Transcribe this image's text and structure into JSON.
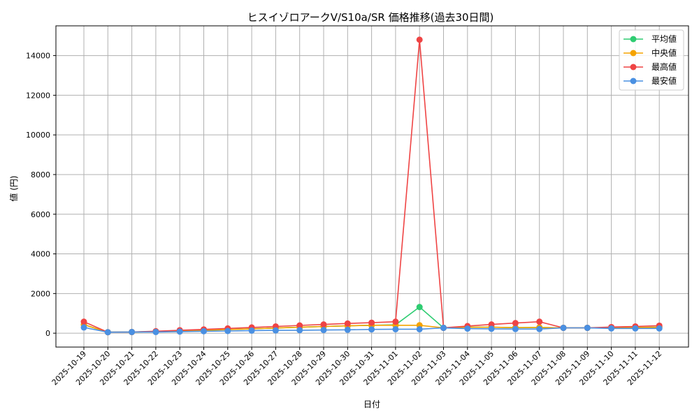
{
  "chart_data": {
    "type": "line",
    "title": "ヒスイゾロアークV/S10a/SR 価格推移(過去30日間)",
    "xlabel": "日付",
    "ylabel": "値 (円)",
    "ylim": [
      -700,
      15500
    ],
    "yticks": [
      0,
      2000,
      4000,
      6000,
      8000,
      10000,
      12000,
      14000
    ],
    "grid": true,
    "legend_position": "top-right",
    "x": [
      "2025-10-19",
      "2025-10-20",
      "2025-10-21",
      "2025-10-22",
      "2025-10-23",
      "2025-10-24",
      "2025-10-25",
      "2025-10-26",
      "2025-10-27",
      "2025-10-28",
      "2025-10-29",
      "2025-10-30",
      "2025-10-31",
      "2025-11-01",
      "2025-11-02",
      "2025-11-03",
      "2025-11-04",
      "2025-11-05",
      "2025-11-06",
      "2025-11-07",
      "2025-11-08",
      "2025-11-09",
      "2025-11-10",
      "2025-11-11",
      "2025-11-12"
    ],
    "series": [
      {
        "name": "平均値",
        "color": "#2ecc71",
        "values": [
          430,
          50,
          60,
          80,
          110,
          140,
          180,
          220,
          260,
          300,
          340,
          370,
          400,
          420,
          1320,
          270,
          300,
          300,
          280,
          290,
          270,
          270,
          280,
          290,
          300
        ]
      },
      {
        "name": "中央値",
        "color": "#f5a300",
        "values": [
          430,
          50,
          60,
          80,
          110,
          140,
          180,
          220,
          260,
          300,
          340,
          370,
          400,
          400,
          400,
          270,
          300,
          300,
          280,
          290,
          270,
          270,
          280,
          290,
          300
        ]
      },
      {
        "name": "最高値",
        "color": "#ef4444",
        "values": [
          580,
          50,
          60,
          100,
          150,
          190,
          240,
          290,
          340,
          390,
          440,
          490,
          530,
          580,
          14800,
          270,
          360,
          440,
          510,
          580,
          270,
          270,
          310,
          340,
          380
        ]
      },
      {
        "name": "最安値",
        "color": "#4a90e2",
        "values": [
          290,
          50,
          60,
          60,
          80,
          100,
          110,
          130,
          140,
          150,
          160,
          170,
          190,
          200,
          200,
          270,
          230,
          220,
          210,
          210,
          270,
          270,
          240,
          240,
          240
        ]
      }
    ]
  }
}
